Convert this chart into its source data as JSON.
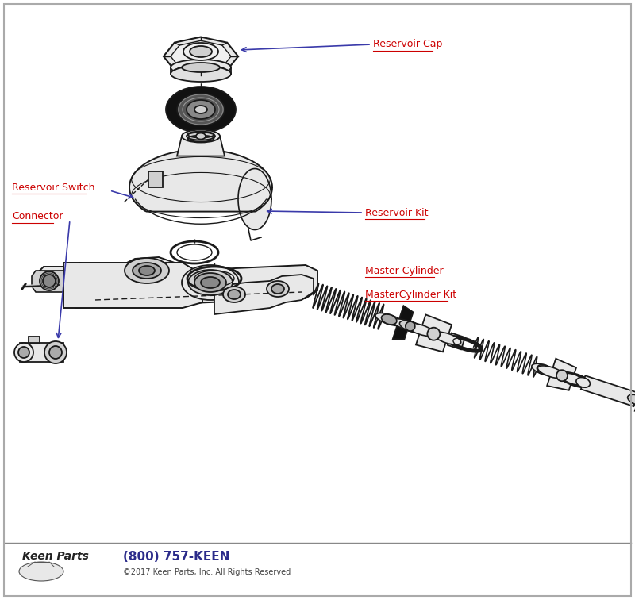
{
  "bg_color": "#ffffff",
  "line_color": "#1a1a1a",
  "fill_light": "#e8e8e8",
  "fill_mid": "#d0d0d0",
  "fill_dark": "#aaaaaa",
  "fill_black": "#111111",
  "label_color": "#cc0000",
  "arrow_color": "#3a3aaa",
  "logo_phone_color": "#2b2b8a",
  "border_color": "#aaaaaa",
  "labels": {
    "reservoir_cap": "Reservoir Cap",
    "reservoir_switch": "Reservoir Switch",
    "connector": "Connector",
    "reservoir_kit": "Reservoir Kit",
    "master_cylinder": "Master Cylinder",
    "master_cylinder_kit": "MasterCylinder Kit"
  },
  "font_size_label": 9,
  "font_size_phone": 11,
  "font_size_copyright": 7
}
